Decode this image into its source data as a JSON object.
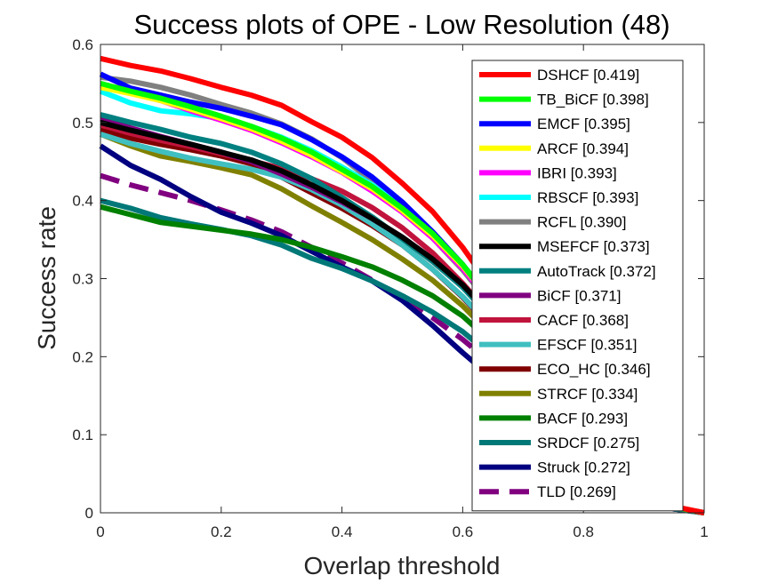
{
  "chart_data": {
    "type": "line",
    "title": "Success plots of OPE - Low Resolution (48)",
    "xlabel": "Overlap threshold",
    "ylabel": "Success rate",
    "xlim": [
      0,
      1
    ],
    "ylim": [
      0,
      0.6
    ],
    "xticks": [
      "0",
      "0.2",
      "0.4",
      "0.6",
      "0.8",
      "1"
    ],
    "yticks": [
      "0",
      "0.1",
      "0.2",
      "0.3",
      "0.4",
      "0.5",
      "0.6"
    ],
    "grid": false,
    "legend_position": "top-right",
    "x": [
      0,
      0.05,
      0.1,
      0.15,
      0.2,
      0.25,
      0.3,
      0.35,
      0.4,
      0.45,
      0.5,
      0.55,
      0.6,
      0.65,
      0.7,
      0.75,
      0.8,
      0.85,
      0.9,
      0.95,
      1
    ],
    "series": [
      {
        "name": "DSHCF [0.419]",
        "color": "#ff0000",
        "values": [
          0.582,
          0.573,
          0.566,
          0.556,
          0.545,
          0.535,
          0.522,
          0.501,
          0.481,
          0.455,
          0.422,
          0.386,
          0.34,
          0.285,
          0.228,
          0.17,
          0.112,
          0.062,
          0.027,
          0.008,
          0
        ]
      },
      {
        "name": "TB_BiCF [0.398]",
        "color": "#00ff00",
        "values": [
          0.55,
          0.54,
          0.531,
          0.52,
          0.508,
          0.495,
          0.48,
          0.462,
          0.44,
          0.418,
          0.39,
          0.358,
          0.318,
          0.27,
          0.218,
          0.164,
          0.108,
          0.06,
          0.026,
          0.007,
          0
        ]
      },
      {
        "name": "EMCF [0.395]",
        "color": "#0000ff",
        "values": [
          0.562,
          0.544,
          0.535,
          0.526,
          0.518,
          0.508,
          0.497,
          0.478,
          0.456,
          0.43,
          0.398,
          0.36,
          0.318,
          0.268,
          0.215,
          0.16,
          0.105,
          0.058,
          0.025,
          0.007,
          0
        ]
      },
      {
        "name": "ARCF [0.394]",
        "color": "#ffff00",
        "values": [
          0.545,
          0.537,
          0.528,
          0.517,
          0.505,
          0.492,
          0.476,
          0.458,
          0.437,
          0.415,
          0.387,
          0.355,
          0.316,
          0.268,
          0.216,
          0.162,
          0.107,
          0.059,
          0.025,
          0.007,
          0
        ]
      },
      {
        "name": "IBRI [0.393]",
        "color": "#ff00ff",
        "values": [
          0.548,
          0.538,
          0.528,
          0.515,
          0.503,
          0.49,
          0.474,
          0.456,
          0.436,
          0.412,
          0.385,
          0.352,
          0.313,
          0.266,
          0.214,
          0.16,
          0.106,
          0.058,
          0.025,
          0.007,
          0
        ]
      },
      {
        "name": "RBSCF [0.393]",
        "color": "#00ffff",
        "values": [
          0.54,
          0.525,
          0.515,
          0.511,
          0.505,
          0.495,
          0.481,
          0.464,
          0.443,
          0.42,
          0.392,
          0.358,
          0.318,
          0.27,
          0.217,
          0.162,
          0.106,
          0.058,
          0.025,
          0.007,
          0
        ]
      },
      {
        "name": "RCFL [0.390]",
        "color": "#808080",
        "values": [
          0.558,
          0.553,
          0.545,
          0.535,
          0.523,
          0.512,
          0.498,
          0.479,
          0.455,
          0.425,
          0.39,
          0.352,
          0.311,
          0.263,
          0.212,
          0.158,
          0.104,
          0.057,
          0.024,
          0.007,
          0
        ]
      },
      {
        "name": "MSEFCF [0.373]",
        "color": "#000000",
        "values": [
          0.5,
          0.49,
          0.481,
          0.472,
          0.462,
          0.452,
          0.438,
          0.42,
          0.4,
          0.377,
          0.353,
          0.325,
          0.292,
          0.25,
          0.203,
          0.152,
          0.101,
          0.056,
          0.024,
          0.007,
          0
        ]
      },
      {
        "name": "AutoTrack [0.372]",
        "color": "#008080",
        "values": [
          0.51,
          0.5,
          0.491,
          0.481,
          0.473,
          0.462,
          0.447,
          0.428,
          0.404,
          0.379,
          0.351,
          0.322,
          0.289,
          0.247,
          0.2,
          0.15,
          0.099,
          0.055,
          0.023,
          0.006,
          0
        ]
      },
      {
        "name": "BiCF [0.371]",
        "color": "#800080",
        "values": [
          0.505,
          0.493,
          0.482,
          0.472,
          0.462,
          0.45,
          0.434,
          0.417,
          0.398,
          0.377,
          0.353,
          0.325,
          0.291,
          0.249,
          0.201,
          0.151,
          0.1,
          0.055,
          0.023,
          0.006,
          0
        ]
      },
      {
        "name": "CACF [0.368]",
        "color": "#c0143c",
        "values": [
          0.497,
          0.486,
          0.477,
          0.469,
          0.46,
          0.451,
          0.441,
          0.428,
          0.412,
          0.391,
          0.365,
          0.333,
          0.294,
          0.25,
          0.202,
          0.151,
          0.099,
          0.054,
          0.023,
          0.006,
          0
        ]
      },
      {
        "name": "EFSCF [0.351]",
        "color": "#40bfc0",
        "values": [
          0.485,
          0.473,
          0.463,
          0.454,
          0.447,
          0.44,
          0.43,
          0.414,
          0.394,
          0.37,
          0.343,
          0.312,
          0.277,
          0.236,
          0.191,
          0.143,
          0.094,
          0.052,
          0.022,
          0.006,
          0
        ]
      },
      {
        "name": "ECO_HC [0.346]",
        "color": "#800000",
        "values": [
          0.49,
          0.48,
          0.472,
          0.465,
          0.457,
          0.447,
          0.43,
          0.41,
          0.39,
          0.368,
          0.343,
          0.312,
          0.276,
          0.234,
          0.189,
          0.141,
          0.093,
          0.051,
          0.022,
          0.006,
          0
        ]
      },
      {
        "name": "STRCF [0.334]",
        "color": "#808000",
        "values": [
          0.485,
          0.47,
          0.457,
          0.45,
          0.442,
          0.433,
          0.415,
          0.393,
          0.372,
          0.35,
          0.325,
          0.298,
          0.265,
          0.226,
          0.183,
          0.137,
          0.09,
          0.05,
          0.021,
          0.006,
          0
        ]
      },
      {
        "name": "BACF [0.293]",
        "color": "#008000",
        "values": [
          0.392,
          0.382,
          0.372,
          0.367,
          0.362,
          0.357,
          0.35,
          0.34,
          0.328,
          0.315,
          0.298,
          0.278,
          0.252,
          0.217,
          0.177,
          0.133,
          0.088,
          0.048,
          0.021,
          0.006,
          0
        ]
      },
      {
        "name": "SRDCF [0.275]",
        "color": "#007878",
        "values": [
          0.4,
          0.39,
          0.378,
          0.37,
          0.363,
          0.355,
          0.343,
          0.326,
          0.313,
          0.297,
          0.278,
          0.257,
          0.232,
          0.2,
          0.163,
          0.122,
          0.081,
          0.045,
          0.019,
          0.005,
          0
        ]
      },
      {
        "name": "Struck [0.272]",
        "color": "#000080",
        "values": [
          0.47,
          0.445,
          0.427,
          0.405,
          0.385,
          0.371,
          0.355,
          0.335,
          0.315,
          0.297,
          0.272,
          0.24,
          0.205,
          0.172,
          0.14,
          0.105,
          0.07,
          0.04,
          0.017,
          0.005,
          0
        ]
      },
      {
        "name": "TLD [0.269]",
        "color": "#800080",
        "dashed": true,
        "values": [
          0.432,
          0.42,
          0.41,
          0.4,
          0.388,
          0.375,
          0.36,
          0.34,
          0.32,
          0.298,
          0.275,
          0.25,
          0.222,
          0.19,
          0.155,
          0.117,
          0.078,
          0.043,
          0.018,
          0.005,
          0
        ]
      }
    ]
  }
}
